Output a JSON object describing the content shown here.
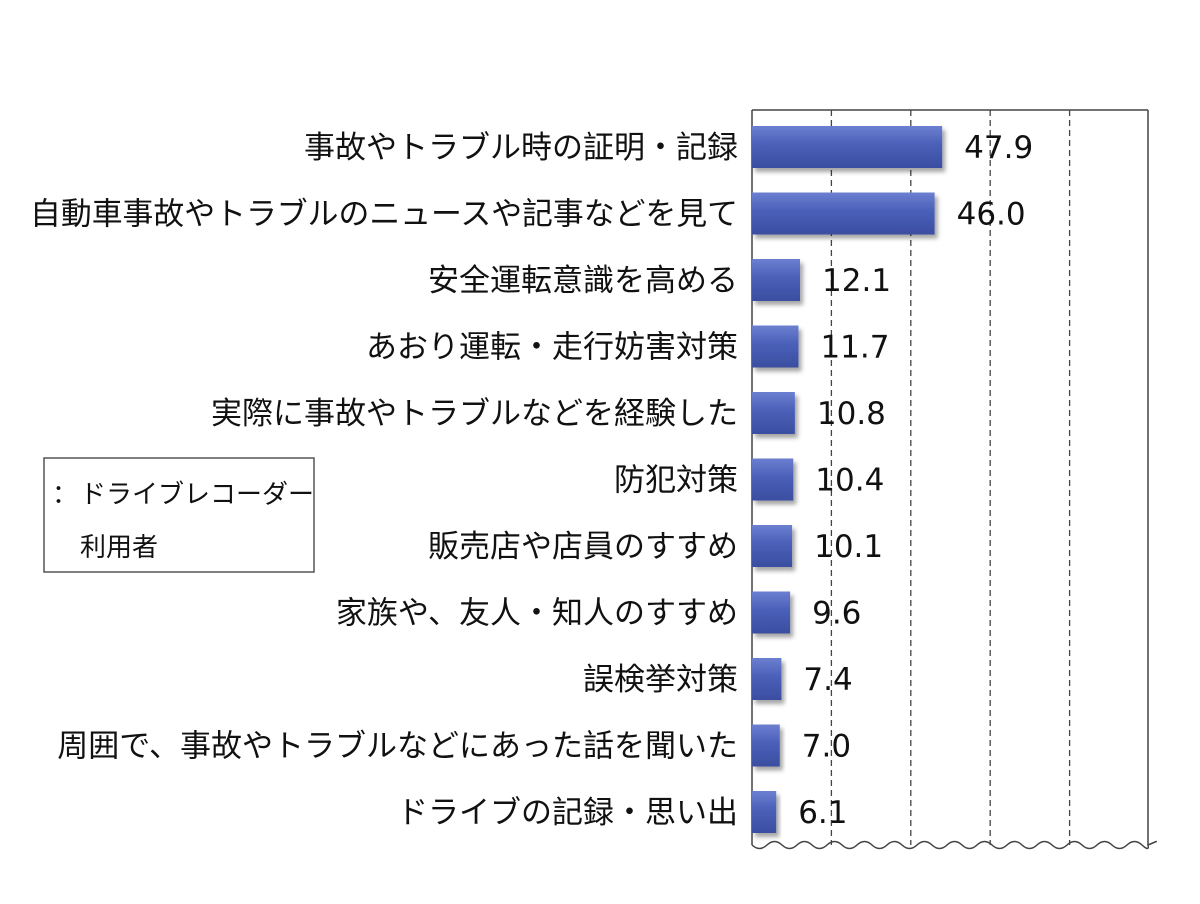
{
  "chart_data": {
    "type": "bar",
    "orientation": "horizontal",
    "categories": [
      "事故やトラブル時の証明・記録",
      "自動車事故やトラブルのニュースや記事などを見て",
      "安全運転意識を高める",
      "あおり運転・走行妨害対策",
      "実際に事故やトラブルなどを経験した",
      "防犯対策",
      "販売店や店員のすすめ",
      "家族や、友人・知人のすすめ",
      "誤検挙対策",
      "周囲で、事故やトラブルなどにあった話を聞いた",
      "ドライブの記録・思い出"
    ],
    "series": [
      {
        "name": "ドライブレコーダー利用者",
        "values": [
          47.9,
          46.0,
          12.1,
          11.7,
          10.8,
          10.4,
          10.1,
          9.6,
          7.4,
          7.0,
          6.1
        ],
        "color": "#4a5fb8"
      }
    ],
    "value_labels": [
      "47.9",
      "46.0",
      "12.1",
      "11.7",
      "10.8",
      "10.4",
      "10.1",
      "9.6",
      "7.4",
      "7.0",
      "6.1"
    ],
    "xlim": [
      0,
      100
    ],
    "grid": true,
    "gridline_values": [
      20,
      40,
      60,
      80
    ],
    "legend": {
      "position": "left",
      "marker": "：",
      "label_line1": "ドライブレコーダー",
      "label_line2": "利用者"
    },
    "title": "",
    "xlabel": "",
    "ylabel": ""
  }
}
